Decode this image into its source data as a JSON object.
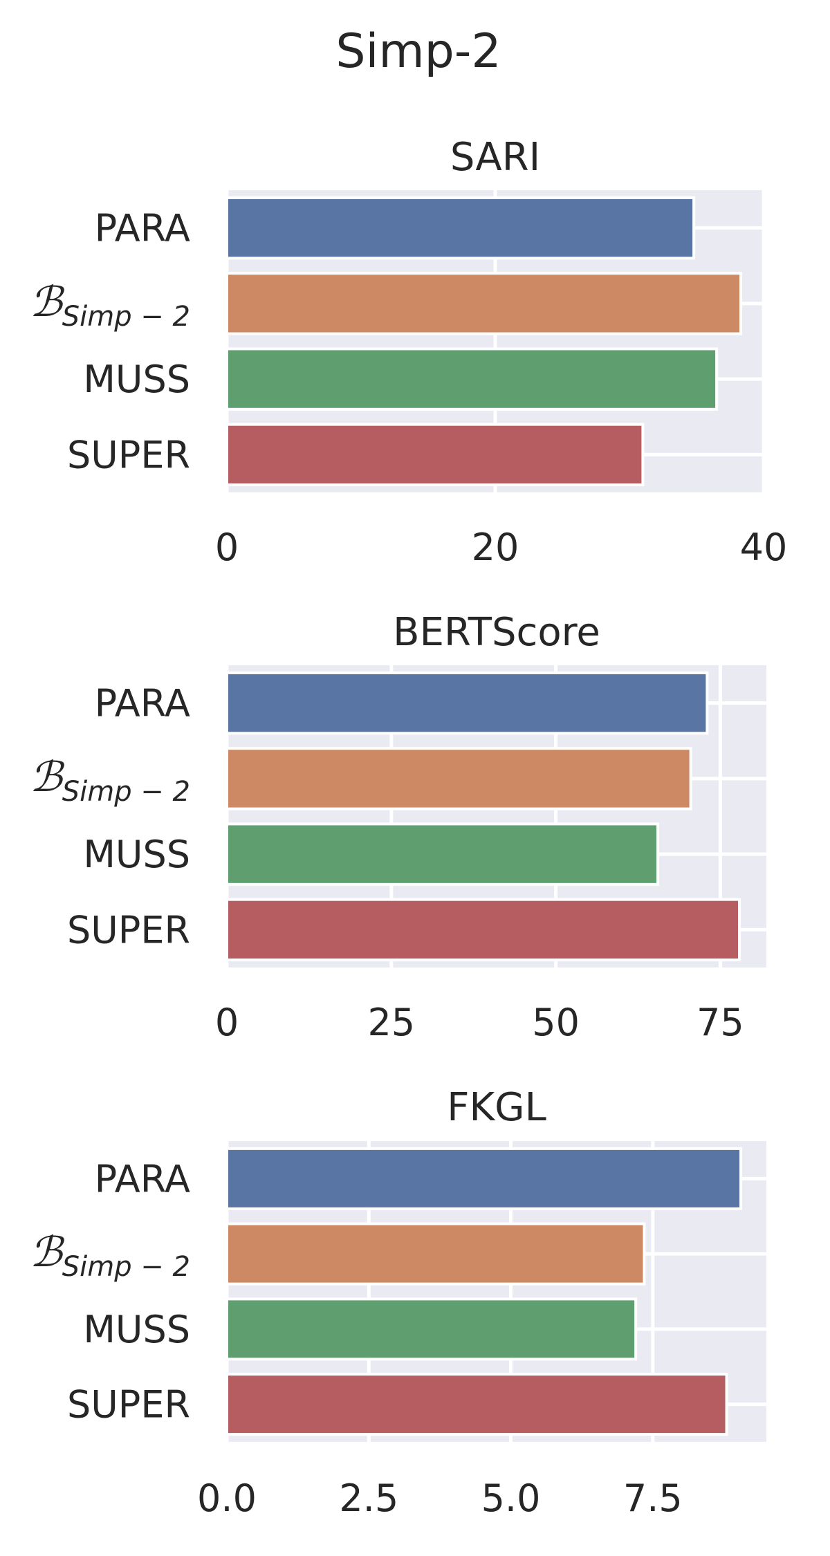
{
  "figure": {
    "title": "Simp-2"
  },
  "chart_data": [
    {
      "type": "bar",
      "orientation": "horizontal",
      "title": "SARI",
      "categories": [
        "PARA",
        "B_Simp-2",
        "MUSS",
        "SUPER"
      ],
      "values": [
        34.8,
        38.3,
        36.5,
        31.0
      ],
      "xlim": [
        0,
        40
      ],
      "xticks": [
        0,
        20,
        40
      ],
      "tick_labels": [
        "0",
        "20",
        "40"
      ],
      "grid": true
    },
    {
      "type": "bar",
      "orientation": "horizontal",
      "title": "BERTScore",
      "categories": [
        "PARA",
        "B_Simp-2",
        "MUSS",
        "SUPER"
      ],
      "values": [
        73.0,
        70.5,
        65.5,
        77.9
      ],
      "xlim": [
        0,
        82
      ],
      "xticks": [
        0,
        25,
        50,
        75
      ],
      "tick_labels": [
        "0",
        "25",
        "50",
        "75"
      ],
      "grid": true
    },
    {
      "type": "bar",
      "orientation": "horizontal",
      "title": "FKGL",
      "categories": [
        "PARA",
        "B_Simp-2",
        "MUSS",
        "SUPER"
      ],
      "values": [
        9.05,
        7.35,
        7.2,
        8.8
      ],
      "xlim": [
        0,
        9.5
      ],
      "xticks": [
        0,
        2.5,
        5.0,
        7.5
      ],
      "tick_labels": [
        "0.0",
        "2.5",
        "5.0",
        "7.5"
      ],
      "grid": true
    }
  ],
  "labels": {
    "categories": [
      "PARA",
      "ℬ",
      "MUSS",
      "SUPER"
    ],
    "b_script": "ℬ",
    "b_subscript": "Simp − 2"
  },
  "colors": [
    "#5875a4",
    "#cc8963",
    "#5f9e6e",
    "#b55d60"
  ],
  "background_color": "#eaeaf2"
}
